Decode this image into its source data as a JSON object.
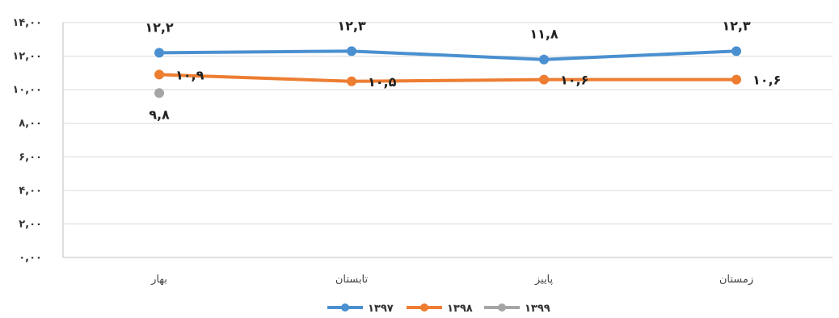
{
  "chart_data": {
    "type": "line",
    "categories": [
      "بهار",
      "تابستان",
      "پاییز",
      "زمستان"
    ],
    "ylim": [
      0,
      14
    ],
    "y_ticks": [
      0,
      2,
      4,
      6,
      8,
      10,
      12,
      14
    ],
    "y_tick_labels": [
      "۰,۰۰",
      "۲,۰۰",
      "۴,۰۰",
      "۶,۰۰",
      "۸,۰۰",
      "۱۰,۰۰",
      "۱۲,۰۰",
      "۱۴,۰۰"
    ],
    "grid": true,
    "legend_position": "bottom",
    "series": [
      {
        "name": "۱۳۹۷",
        "values": [
          12.2,
          12.3,
          11.8,
          12.3
        ],
        "labels": [
          "۱۲,۲",
          "۱۲,۳",
          "۱۱,۸",
          "۱۲,۳"
        ],
        "color": "#4a90d0"
      },
      {
        "name": "۱۳۹۸",
        "values": [
          10.9,
          10.5,
          10.6,
          10.6
        ],
        "labels": [
          "۱۰,۹",
          "۱۰,۵",
          "۱۰,۶",
          "۱۰,۶"
        ],
        "color": "#ed7d31"
      },
      {
        "name": "۱۳۹۹",
        "values": [
          9.8,
          null,
          null,
          null
        ],
        "labels": [
          "۹,۸",
          "",
          "",
          ""
        ],
        "color": "#a5a5a5"
      }
    ]
  }
}
